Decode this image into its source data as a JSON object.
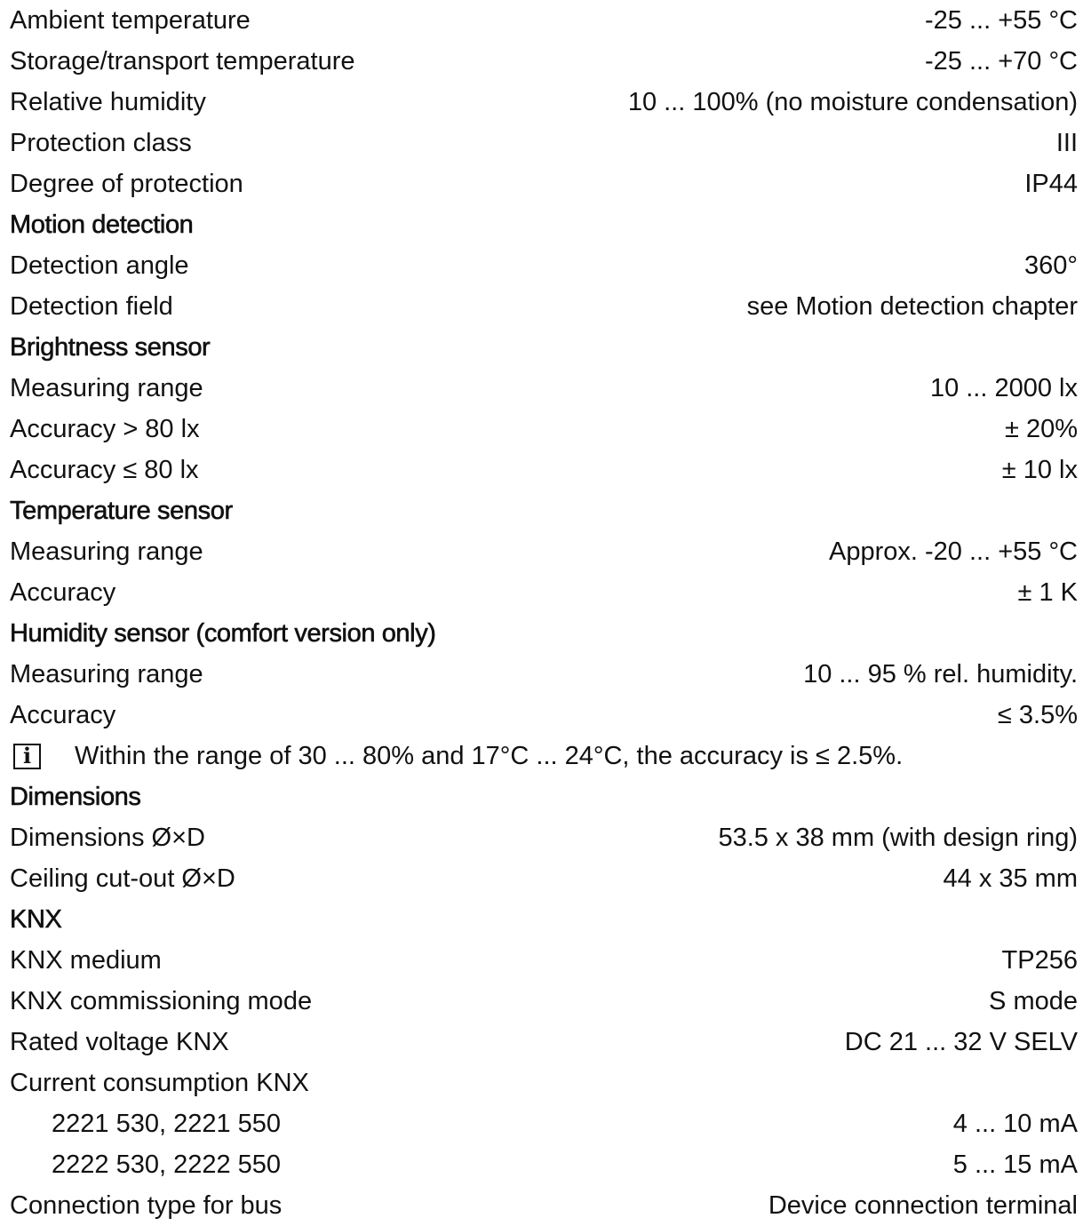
{
  "general": [
    {
      "label": "Ambient temperature",
      "value": "-25 ... +55 °C"
    },
    {
      "label": "Storage/transport temperature",
      "value": "-25 ... +70 °C"
    },
    {
      "label": "Relative humidity",
      "value": "10 ... 100% (no moisture condensation)"
    },
    {
      "label": "Protection class",
      "value": "III"
    },
    {
      "label": "Degree of protection",
      "value": "IP44"
    }
  ],
  "motion": {
    "heading": "Motion detection",
    "rows": [
      {
        "label": "Detection angle",
        "value": "360°"
      },
      {
        "label": "Detection field",
        "value": "see Motion detection chapter"
      }
    ]
  },
  "brightness": {
    "heading": "Brightness sensor",
    "rows": [
      {
        "label": "Measuring range",
        "value": "10 ... 2000 lx"
      },
      {
        "label": "Accuracy > 80 lx",
        "value": "± 20%"
      },
      {
        "label": "Accuracy ≤ 80 lx",
        "value": "± 10 lx"
      }
    ]
  },
  "temperature": {
    "heading": "Temperature sensor",
    "rows": [
      {
        "label": "Measuring range",
        "value": "Approx. -20 ... +55 °C"
      },
      {
        "label": "Accuracy",
        "value": "± 1 K"
      }
    ]
  },
  "humidity": {
    "heading": "Humidity sensor (comfort version only)",
    "rows": [
      {
        "label": "Measuring range",
        "value": "10 ... 95 % rel. humidity."
      },
      {
        "label": "Accuracy",
        "value": "≤ 3.5%"
      }
    ],
    "note_icon": "info-icon",
    "note_icon_glyph": "i",
    "note": "Within the range of 30 ... 80% and 17°C ... 24°C, the accuracy is ≤ 2.5%."
  },
  "dimensions": {
    "heading": "Dimensions",
    "rows": [
      {
        "label": "Dimensions Ø×D",
        "value": "53.5 x 38 mm (with design ring)"
      },
      {
        "label": "Ceiling cut-out Ø×D",
        "value": "44 x 35 mm"
      }
    ]
  },
  "knx": {
    "heading": "KNX",
    "rows": [
      {
        "label": "KNX medium",
        "value": "TP256"
      },
      {
        "label": "KNX commissioning mode",
        "value": "S mode"
      },
      {
        "label": "Rated voltage KNX",
        "value": "DC 21 ... 32 V SELV"
      }
    ],
    "current_label": "Current consumption KNX",
    "current_rows": [
      {
        "label": "2221 530, 2221 550",
        "value": "4 ... 10 mA"
      },
      {
        "label": "2222 530, 2222 550",
        "value": "5 ... 15 mA"
      }
    ],
    "connection": {
      "label": "Connection type for bus",
      "value": "Device connection terminal"
    }
  },
  "colors": {
    "text": "#111111",
    "background": "#ffffff"
  }
}
